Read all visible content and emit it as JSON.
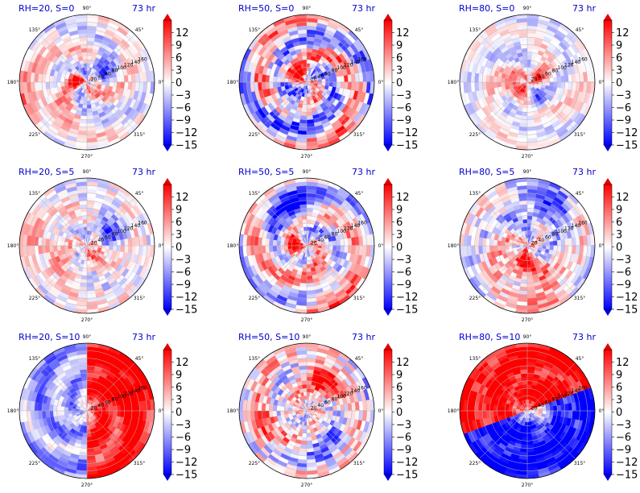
{
  "chart_data": [
    {
      "type": "heatmap",
      "title": "RH=20, S=0",
      "time_label": "73 hr",
      "pattern": {
        "mode": "spiral",
        "amp": 0.6,
        "noise": 0.25,
        "phase": 0.0,
        "blobs": [
          {
            "r": 28,
            "th": 170,
            "s": 16,
            "v": 1.0
          },
          {
            "r": 40,
            "th": 55,
            "s": 22,
            "v": -0.8
          },
          {
            "r": 30,
            "th": 350,
            "s": 12,
            "v": 0.9
          },
          {
            "r": 160,
            "th": 200,
            "s": 60,
            "v": 0.45
          }
        ]
      }
    },
    {
      "type": "heatmap",
      "title": "RH=50, S=0",
      "time_label": "73 hr",
      "pattern": {
        "mode": "ring",
        "amp": 0.7,
        "noise": 0.45,
        "phase": 1.2,
        "blobs": [
          {
            "r": 30,
            "th": 120,
            "s": 14,
            "v": 1.0
          },
          {
            "r": 60,
            "th": 160,
            "s": 18,
            "v": 0.8
          },
          {
            "r": 90,
            "th": 240,
            "s": 40,
            "v": -0.5
          }
        ]
      }
    },
    {
      "type": "heatmap",
      "title": "RH=80, S=0",
      "time_label": "73 hr",
      "pattern": {
        "mode": "spiral",
        "amp": 0.5,
        "noise": 0.2,
        "phase": 2.4,
        "blobs": [
          {
            "r": 35,
            "th": 200,
            "s": 20,
            "v": 1.0
          },
          {
            "r": 30,
            "th": 40,
            "s": 14,
            "v": 0.8
          },
          {
            "r": 55,
            "th": 300,
            "s": 16,
            "v": -0.7
          },
          {
            "r": 150,
            "th": 100,
            "s": 50,
            "v": -0.15
          }
        ]
      }
    },
    {
      "type": "heatmap",
      "title": "RH=20, S=5",
      "time_label": "73 hr",
      "pattern": {
        "mode": "spiral",
        "amp": 0.35,
        "noise": 0.3,
        "phase": 0.6,
        "blobs": [
          {
            "r": 30,
            "th": 340,
            "s": 18,
            "v": 0.9
          },
          {
            "r": 60,
            "th": 30,
            "s": 30,
            "v": -0.7
          },
          {
            "r": 120,
            "th": 180,
            "s": 50,
            "v": 0.35
          }
        ]
      }
    },
    {
      "type": "heatmap",
      "title": "RH=50, S=5",
      "time_label": "73 hr",
      "pattern": {
        "mode": "ring",
        "amp": 0.6,
        "noise": 0.35,
        "phase": 0.3,
        "blobs": [
          {
            "r": 40,
            "th": 180,
            "s": 22,
            "v": 1.0
          },
          {
            "r": 120,
            "th": 110,
            "s": 50,
            "v": -0.7
          },
          {
            "r": 130,
            "th": 300,
            "s": 50,
            "v": 0.35
          }
        ]
      }
    },
    {
      "type": "heatmap",
      "title": "RH=80, S=5",
      "time_label": "73 hr",
      "pattern": {
        "mode": "spiral",
        "amp": 0.55,
        "noise": 0.35,
        "phase": 1.8,
        "blobs": [
          {
            "r": 50,
            "th": 250,
            "s": 30,
            "v": 0.9
          },
          {
            "r": 120,
            "th": 70,
            "s": 50,
            "v": -0.7
          },
          {
            "r": 140,
            "th": 290,
            "s": 40,
            "v": 0.7
          }
        ]
      }
    },
    {
      "type": "heatmap",
      "title": "RH=20, S=10",
      "time_label": "73 hr",
      "pattern": {
        "mode": "half",
        "amp": 0.3,
        "noise": 0.2,
        "phase": 0.0,
        "split": -90,
        "pos": 0.85,
        "neg": -0.35,
        "blobs": [
          {
            "r": 120,
            "th": 30,
            "s": 50,
            "v": 0.5
          }
        ]
      }
    },
    {
      "type": "heatmap",
      "title": "RH=50, S=10",
      "time_label": "73 hr",
      "pattern": {
        "mode": "ring",
        "amp": 0.35,
        "noise": 0.45,
        "phase": 0.8,
        "blobs": [
          {
            "r": 100,
            "th": 60,
            "s": 40,
            "v": 0.9
          },
          {
            "r": 120,
            "th": 200,
            "s": 60,
            "v": 0.35
          },
          {
            "r": 110,
            "th": 300,
            "s": 40,
            "v": -0.4
          }
        ]
      }
    },
    {
      "type": "heatmap",
      "title": "RH=80, S=10",
      "time_label": "73 hr",
      "pattern": {
        "mode": "half",
        "amp": 0.2,
        "noise": 0.3,
        "phase": 0.0,
        "split": 20,
        "pos": 1.0,
        "neg": -1.0,
        "blobs": [
          {
            "r": 40,
            "th": 0,
            "s": 25,
            "v": 0.8
          }
        ]
      }
    }
  ],
  "polar_axes": {
    "angle_labels": [
      {
        "deg": 0,
        "text": "0°"
      },
      {
        "deg": 45,
        "text": "45°"
      },
      {
        "deg": 90,
        "text": "90°"
      },
      {
        "deg": 135,
        "text": "135°"
      },
      {
        "deg": 180,
        "text": "180°"
      },
      {
        "deg": 225,
        "text": "225°"
      },
      {
        "deg": 270,
        "text": "270°"
      },
      {
        "deg": 315,
        "text": "315°"
      }
    ],
    "radial_ticks": [
      20,
      40,
      60,
      80,
      100,
      120,
      140,
      160
    ],
    "rmax": 180,
    "radial_label_angle_deg": 22.5
  },
  "colorbar": {
    "ticks": [
      "12",
      "9",
      "6",
      "3",
      "0",
      "−3",
      "−6",
      "−9",
      "−12",
      "−15"
    ],
    "vmin": -15,
    "vmax": 15,
    "colormap": "bwr",
    "extend": "both"
  },
  "colors": {
    "title": "#0000cc",
    "grid": "#b8b8b8",
    "frame": "#000000"
  }
}
